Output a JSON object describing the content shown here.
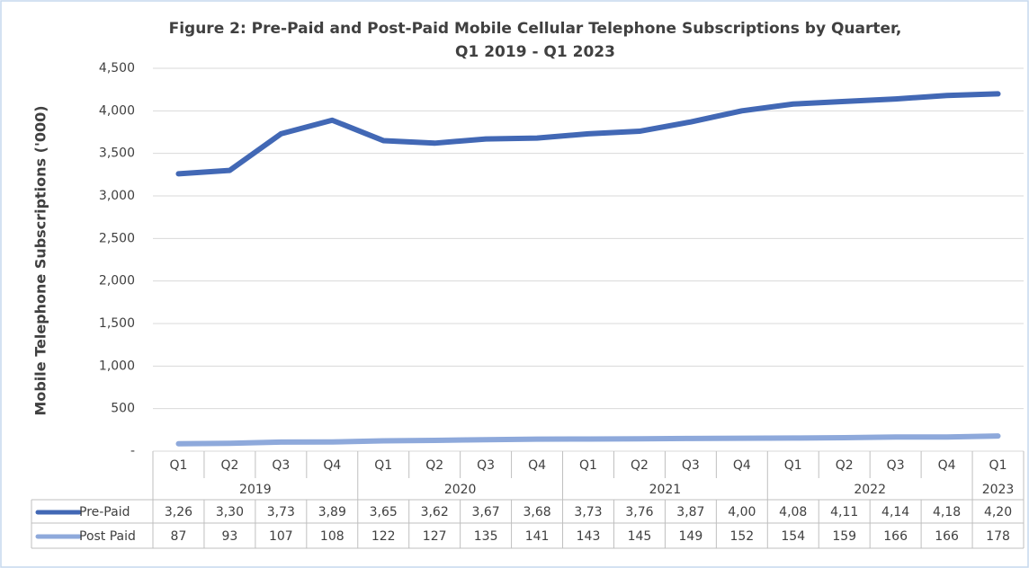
{
  "chart_data": {
    "type": "line",
    "title": [
      "Figure 2: Pre-Paid and Post-Paid Mobile Cellular Telephone Subscriptions by Quarter,",
      "Q1 2019 - Q1 2023"
    ],
    "ylabel": "Mobile Telephone Subscriptions ('000)",
    "categories": [
      "Q1",
      "Q2",
      "Q3",
      "Q4",
      "Q1",
      "Q2",
      "Q3",
      "Q4",
      "Q1",
      "Q2",
      "Q3",
      "Q4",
      "Q1",
      "Q2",
      "Q3",
      "Q4",
      "Q1"
    ],
    "groups": [
      {
        "label": "2019",
        "count": 4
      },
      {
        "label": "2020",
        "count": 4
      },
      {
        "label": "2021",
        "count": 4
      },
      {
        "label": "2022",
        "count": 4
      },
      {
        "label": "2023",
        "count": 1
      }
    ],
    "series": [
      {
        "name": "Pre-Paid",
        "color": "#4268b5",
        "values": [
          3260,
          3300,
          3730,
          3890,
          3650,
          3620,
          3670,
          3680,
          3730,
          3760,
          3870,
          4000,
          4080,
          4110,
          4140,
          4180,
          4200
        ],
        "value_labels": [
          "3,26",
          "3,30",
          "3,73",
          "3,89",
          "3,65",
          "3,62",
          "3,67",
          "3,68",
          "3,73",
          "3,76",
          "3,87",
          "4,00",
          "4,08",
          "4,11",
          "4,14",
          "4,18",
          "4,20"
        ]
      },
      {
        "name": "Post Paid",
        "color": "#8ea9db",
        "values": [
          87,
          93,
          107,
          108,
          122,
          127,
          135,
          141,
          143,
          145,
          149,
          152,
          154,
          159,
          166,
          166,
          178
        ]
      }
    ],
    "ylim": [
      0,
      4500
    ],
    "yticks": [
      {
        "value": 0,
        "label": "-"
      },
      500,
      {
        "value": 1000,
        "label": "1,000"
      },
      {
        "value": 1500,
        "label": "1,500"
      },
      {
        "value": 2000,
        "label": "2,000"
      },
      {
        "value": 2500,
        "label": "2,500"
      },
      {
        "value": 3000,
        "label": "3,000"
      },
      {
        "value": 3500,
        "label": "3,500"
      },
      {
        "value": 4000,
        "label": "4,000"
      },
      {
        "value": 4500,
        "label": "4,500"
      }
    ],
    "grid": true
  }
}
